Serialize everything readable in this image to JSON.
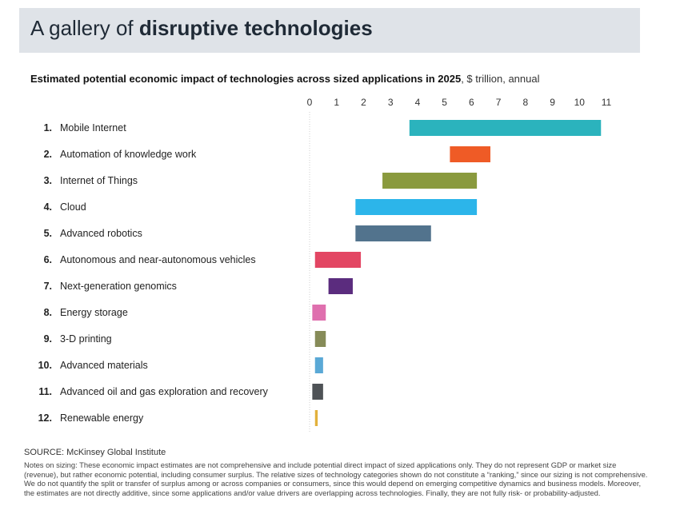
{
  "header": {
    "title_prefix": "A gallery of ",
    "title_bold": "disruptive technologies"
  },
  "chart_heading": {
    "main": "Estimated potential economic impact of technologies across sized applications in 2025",
    "unit": ", $ trillion, annual"
  },
  "chart_data": {
    "type": "bar",
    "orientation": "horizontal",
    "range_bars": true,
    "xlim": [
      0,
      11
    ],
    "xticks": [
      "0",
      "1",
      "2",
      "3",
      "4",
      "5",
      "6",
      "7",
      "8",
      "9",
      "10",
      "11"
    ],
    "x_axis_position": "top",
    "grid": false,
    "categories": [
      {
        "num": "1.",
        "label": "Mobile Internet",
        "low": 3.7,
        "high": 10.8,
        "color": "#2bb3bd"
      },
      {
        "num": "2.",
        "label": "Automation of knowledge work",
        "low": 5.2,
        "high": 6.7,
        "color": "#ef5b26"
      },
      {
        "num": "3.",
        "label": "Internet of Things",
        "low": 2.7,
        "high": 6.2,
        "color": "#8a9a3e"
      },
      {
        "num": "4.",
        "label": "Cloud",
        "low": 1.7,
        "high": 6.2,
        "color": "#2cb5ea"
      },
      {
        "num": "5.",
        "label": "Advanced robotics",
        "low": 1.7,
        "high": 4.5,
        "color": "#52738d"
      },
      {
        "num": "6.",
        "label": "Autonomous and near-autonomous vehicles",
        "low": 0.2,
        "high": 1.9,
        "color": "#e34663"
      },
      {
        "num": "7.",
        "label": "Next-generation genomics",
        "low": 0.7,
        "high": 1.6,
        "color": "#5b2c7e"
      },
      {
        "num": "8.",
        "label": "Energy storage",
        "low": 0.1,
        "high": 0.6,
        "color": "#df6fae"
      },
      {
        "num": "9.",
        "label": "3-D printing",
        "low": 0.2,
        "high": 0.6,
        "color": "#868b58"
      },
      {
        "num": "10.",
        "label": "Advanced materials",
        "low": 0.2,
        "high": 0.5,
        "color": "#5aa9d6"
      },
      {
        "num": "11.",
        "label": "Advanced oil and gas exploration and recovery",
        "low": 0.1,
        "high": 0.5,
        "color": "#4e5256"
      },
      {
        "num": "12.",
        "label": "Renewable energy",
        "low": 0.2,
        "high": 0.3,
        "color": "#e2b13c"
      }
    ]
  },
  "footer": {
    "source": "SOURCE: McKinsey Global Institute",
    "notes": "Notes on sizing: These economic impact estimates are not comprehensive and include potential direct impact of sized applications only. They do not represent GDP or market size (revenue), but rather economic potential, including consumer surplus. The relative sizes of technology categories shown do not constitute a “ranking,” since our sizing is not comprehensive. We do not quantify the split or transfer of surplus among or across companies or consumers, since this would depend on emerging competitive dynamics and business models. Moreover, the estimates are not directly additive, since some applications and/or value drivers are overlapping across technologies. Finally, they are not fully risk- or probability-adjusted."
  }
}
